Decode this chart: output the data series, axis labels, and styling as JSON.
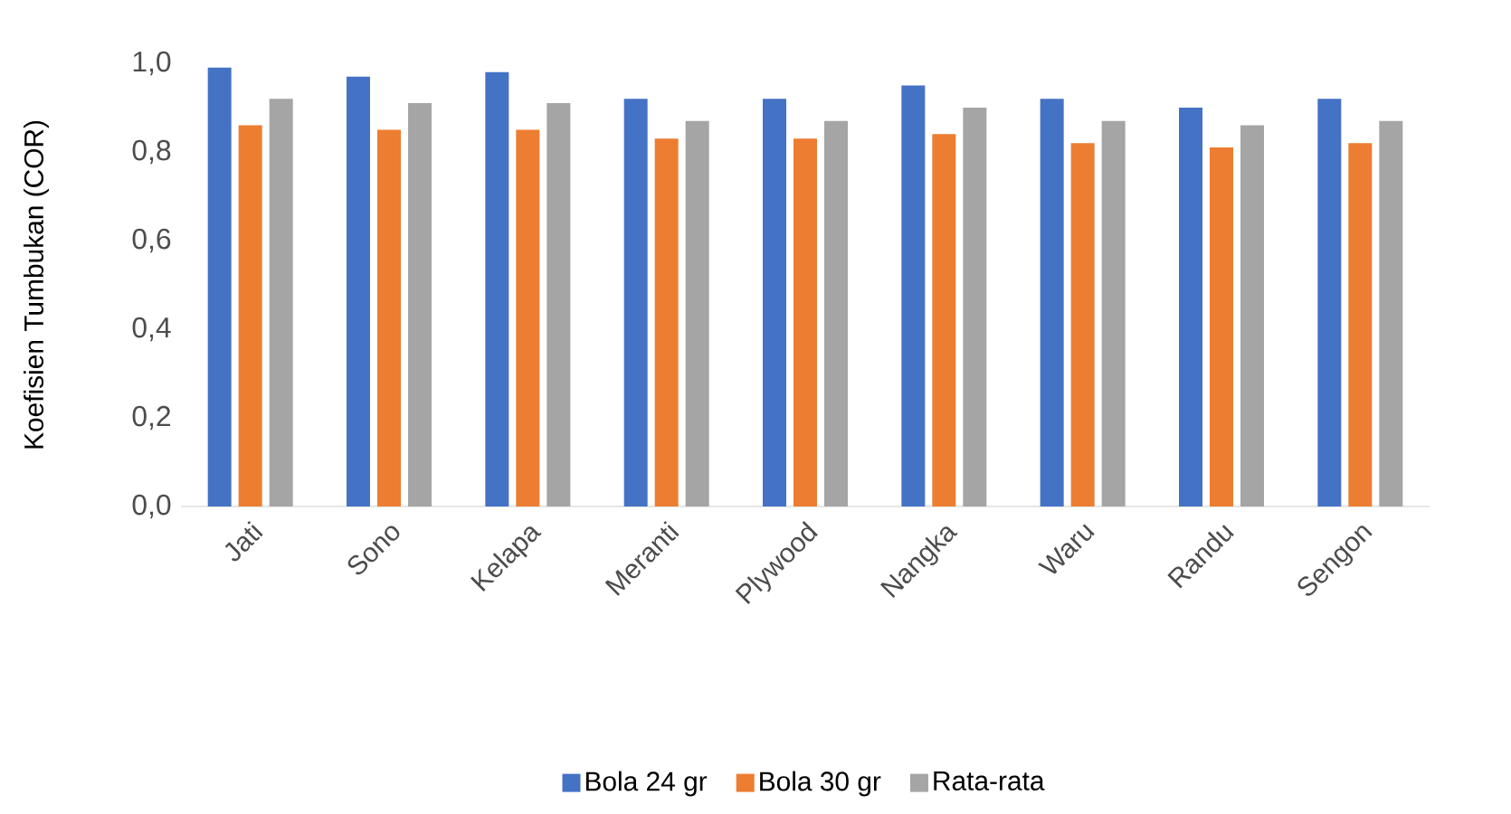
{
  "chart_data": {
    "type": "bar",
    "ylabel": "Koefisien Tumbukan (COR)",
    "categories": [
      "Jati",
      "Sono",
      "Kelapa",
      "Meranti",
      "Plywood",
      "Nangka",
      "Waru",
      "Randu",
      "Sengon"
    ],
    "series": [
      {
        "name": "Bola 24 gr",
        "color": "#4472c4",
        "values": [
          0.99,
          0.97,
          0.98,
          0.92,
          0.92,
          0.95,
          0.92,
          0.9,
          0.92
        ]
      },
      {
        "name": "Bola 30 gr",
        "color": "#ed7d31",
        "values": [
          0.86,
          0.85,
          0.85,
          0.83,
          0.83,
          0.84,
          0.82,
          0.81,
          0.82
        ]
      },
      {
        "name": "Rata-rata",
        "color": "#a5a5a5",
        "values": [
          0.92,
          0.91,
          0.91,
          0.87,
          0.87,
          0.9,
          0.87,
          0.86,
          0.87
        ]
      }
    ],
    "ylim": [
      0,
      1.0
    ],
    "yticks": [
      {
        "value": 0,
        "label": "0,0"
      },
      {
        "value": 0.2,
        "label": "0,2"
      },
      {
        "value": 0.4,
        "label": "0,4"
      },
      {
        "value": 0.6,
        "label": "0,6"
      },
      {
        "value": 0.8,
        "label": "0,8"
      },
      {
        "value": 1.0,
        "label": "1,0"
      }
    ],
    "legend": "bottom"
  }
}
